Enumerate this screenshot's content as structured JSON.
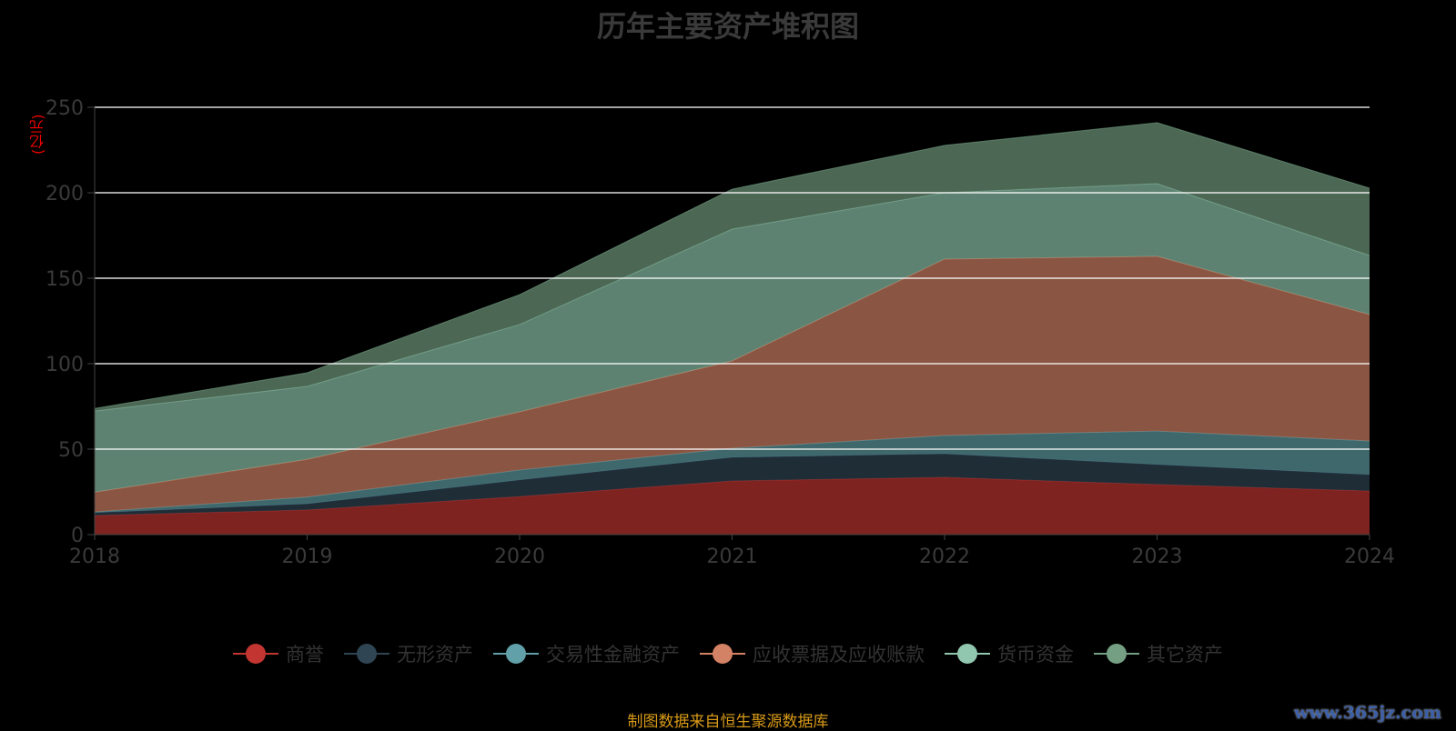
{
  "chart_data": {
    "type": "area",
    "stacked": true,
    "title": "历年主要资产堆积图",
    "ylabel": "(亿元)",
    "xlabel": "",
    "categories": [
      "2018",
      "2019",
      "2020",
      "2021",
      "2022",
      "2023",
      "2024"
    ],
    "ylim": [
      0,
      250
    ],
    "yticks": [
      0,
      50,
      100,
      150,
      200,
      250
    ],
    "grid": true,
    "legend_position": "bottom",
    "series": [
      {
        "name": "商誉",
        "color": "#c23531",
        "values": [
          11.2,
          14.4,
          22.3,
          31.4,
          33.5,
          29.3,
          25.5
        ]
      },
      {
        "name": "无形资产",
        "color": "#2f4554",
        "values": [
          1.6,
          3.6,
          9.7,
          13.8,
          13.8,
          11.7,
          9.6
        ]
      },
      {
        "name": "交易性金融资产",
        "color": "#61a0a8",
        "values": [
          0.5,
          4.0,
          5.8,
          5.3,
          10.7,
          19.6,
          19.7
        ]
      },
      {
        "name": "应收票据及应收账款",
        "color": "#d48265",
        "values": [
          11.5,
          22.0,
          34.0,
          51.1,
          103.2,
          102.2,
          73.9
        ]
      },
      {
        "name": "货币资金",
        "color": "#91c7ae",
        "values": [
          47.5,
          42.7,
          51.1,
          77.1,
          38.8,
          42.5,
          34.6
        ]
      },
      {
        "name": "其它资产",
        "color": "#749f83",
        "values": [
          1.5,
          8.0,
          17.5,
          23.4,
          27.7,
          35.7,
          39.4
        ]
      }
    ]
  },
  "footer": {
    "source": "制图数据来自恒生聚源数据库",
    "watermark": "www.365jz.com"
  }
}
